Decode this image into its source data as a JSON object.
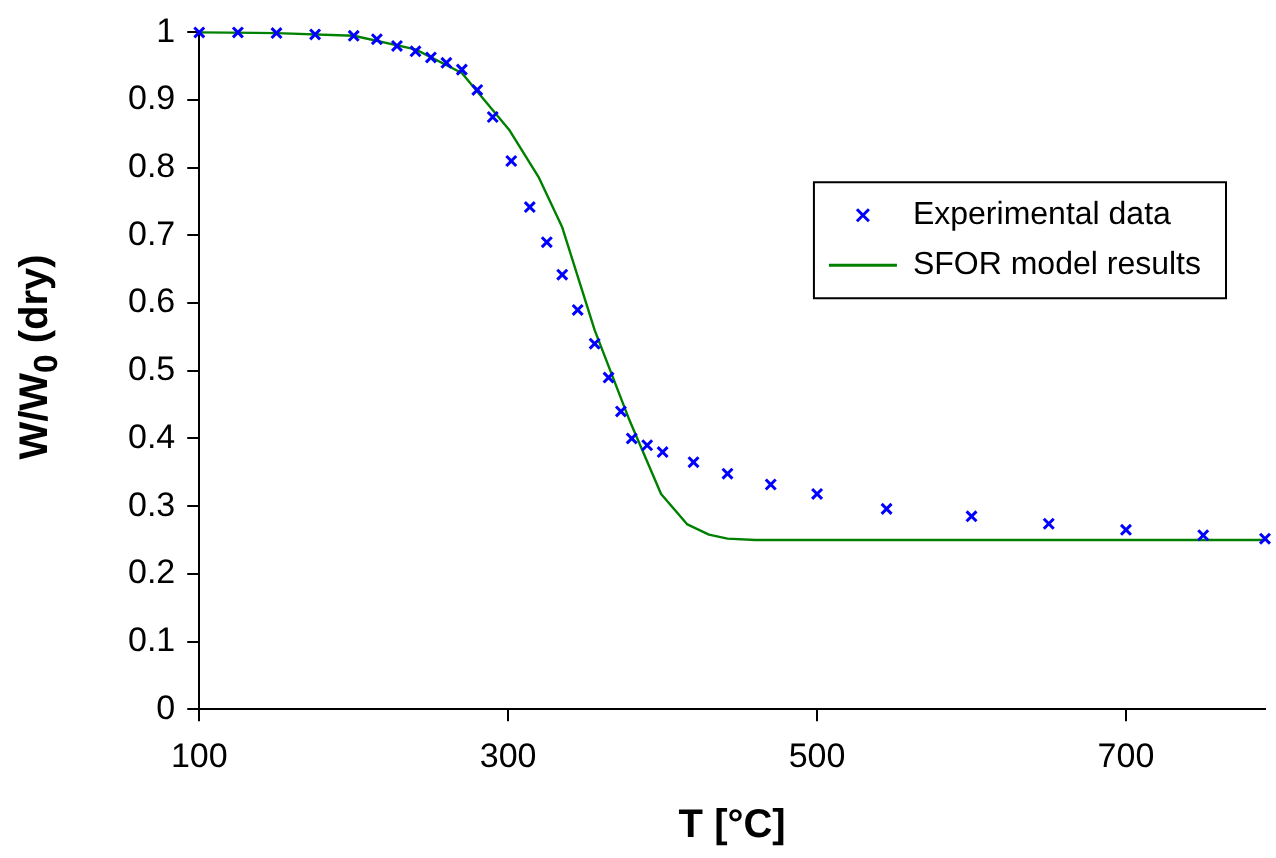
{
  "chart_data": {
    "type": "scatter",
    "xlabel": "T [°C]",
    "ylabel": "W/W$_{0}$ (dry)",
    "xlim": [
      100,
      790
    ],
    "xticks": [
      100,
      300,
      500,
      700
    ],
    "ylim": [
      0,
      1
    ],
    "yticks": [
      0,
      0.1,
      0.2,
      0.3,
      0.4,
      0.5,
      0.6,
      0.7,
      0.8,
      0.9,
      1
    ],
    "grid": false,
    "legend": "right",
    "series": [
      {
        "name": "Experimental data",
        "type": "scatter",
        "marker": "cross",
        "color": "#0000ff",
        "x": [
          100,
          125,
          150,
          175,
          200,
          215,
          228,
          240,
          250,
          260,
          270,
          280,
          290,
          302,
          314,
          325,
          335,
          345,
          356,
          365,
          373,
          380,
          390,
          400,
          420,
          442,
          470,
          500,
          545,
          600,
          650,
          700,
          750,
          790
        ],
        "values": [
          1.0,
          1.0,
          0.999,
          0.997,
          0.995,
          0.99,
          0.98,
          0.972,
          0.963,
          0.955,
          0.945,
          0.915,
          0.875,
          0.81,
          0.742,
          0.69,
          0.642,
          0.59,
          0.54,
          0.49,
          0.44,
          0.4,
          0.39,
          0.38,
          0.365,
          0.348,
          0.332,
          0.318,
          0.296,
          0.285,
          0.274,
          0.265,
          0.257,
          0.252
        ]
      },
      {
        "name": "SFOR model results",
        "type": "line",
        "marker": "none",
        "color": "#008000",
        "x": [
          100,
          150,
          200,
          240,
          270,
          301,
          320,
          335,
          356,
          378,
          399,
          416,
          430,
          442,
          460,
          500,
          600,
          700,
          790
        ],
        "values": [
          1.0,
          0.999,
          0.995,
          0.975,
          0.94,
          0.855,
          0.785,
          0.712,
          0.56,
          0.43,
          0.318,
          0.273,
          0.258,
          0.252,
          0.25,
          0.25,
          0.25,
          0.25,
          0.25
        ]
      }
    ]
  }
}
